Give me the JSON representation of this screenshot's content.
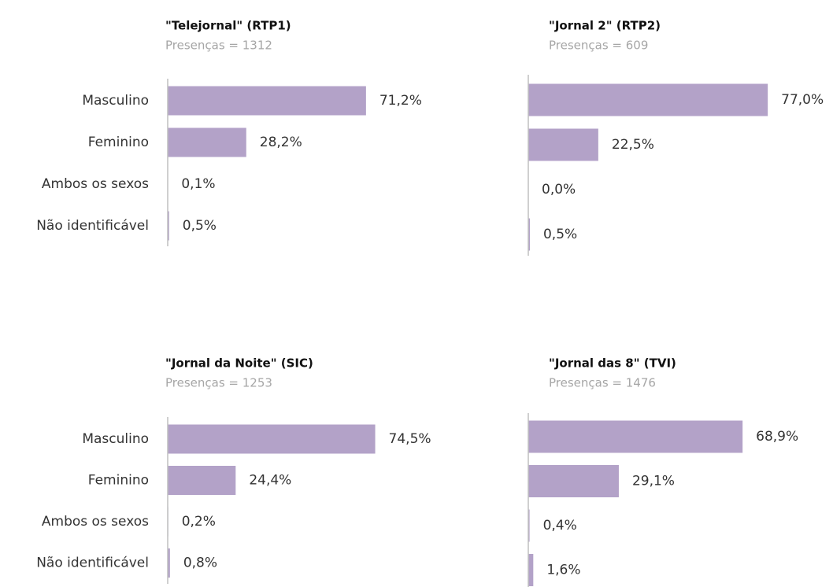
{
  "chart_data": [
    {
      "type": "bar",
      "orientation": "horizontal",
      "title": "\"Telejornal\" (RTP1)",
      "subtitle": "Presenças = 1312",
      "categories": [
        "Masculino",
        "Feminino",
        "Ambos os sexos",
        "Não identificável"
      ],
      "values": [
        71.2,
        28.2,
        0.1,
        0.5
      ],
      "value_labels": [
        "71,2%",
        "28,2%",
        "0,1%",
        "0,5%"
      ],
      "color": "#b3a2c8",
      "xlim": [
        0,
        80
      ]
    },
    {
      "type": "bar",
      "orientation": "horizontal",
      "title": "\"Jornal 2\" (RTP2)",
      "subtitle": "Presenças = 609",
      "categories": [
        null,
        null,
        null,
        null
      ],
      "values": [
        77.0,
        22.5,
        0.0,
        0.5
      ],
      "value_labels": [
        "77,0%",
        "22,5%",
        "0,0%",
        "0,5%"
      ],
      "color": "#b3a2c8",
      "xlim": [
        0,
        80
      ]
    },
    {
      "type": "bar",
      "orientation": "horizontal",
      "title": "\"Jornal da Noite\" (SIC)",
      "subtitle": "Presenças = 1253",
      "categories": [
        "Masculino",
        "Feminino",
        "Ambos os sexos",
        "Não identificável"
      ],
      "values": [
        74.5,
        24.4,
        0.2,
        0.8
      ],
      "value_labels": [
        "74,5%",
        "24,4%",
        "0,2%",
        "0,8%"
      ],
      "color": "#b3a2c8",
      "xlim": [
        0,
        80
      ]
    },
    {
      "type": "bar",
      "orientation": "horizontal",
      "title": "\"Jornal das 8\" (TVI)",
      "subtitle": "Presenças = 1476",
      "categories": [
        null,
        null,
        null,
        null
      ],
      "values": [
        68.9,
        29.1,
        0.4,
        1.6
      ],
      "value_labels": [
        "68,9%",
        "29,1%",
        "0,4%",
        "1,6%"
      ],
      "color": "#b3a2c8",
      "xlim": [
        0,
        80
      ]
    }
  ]
}
